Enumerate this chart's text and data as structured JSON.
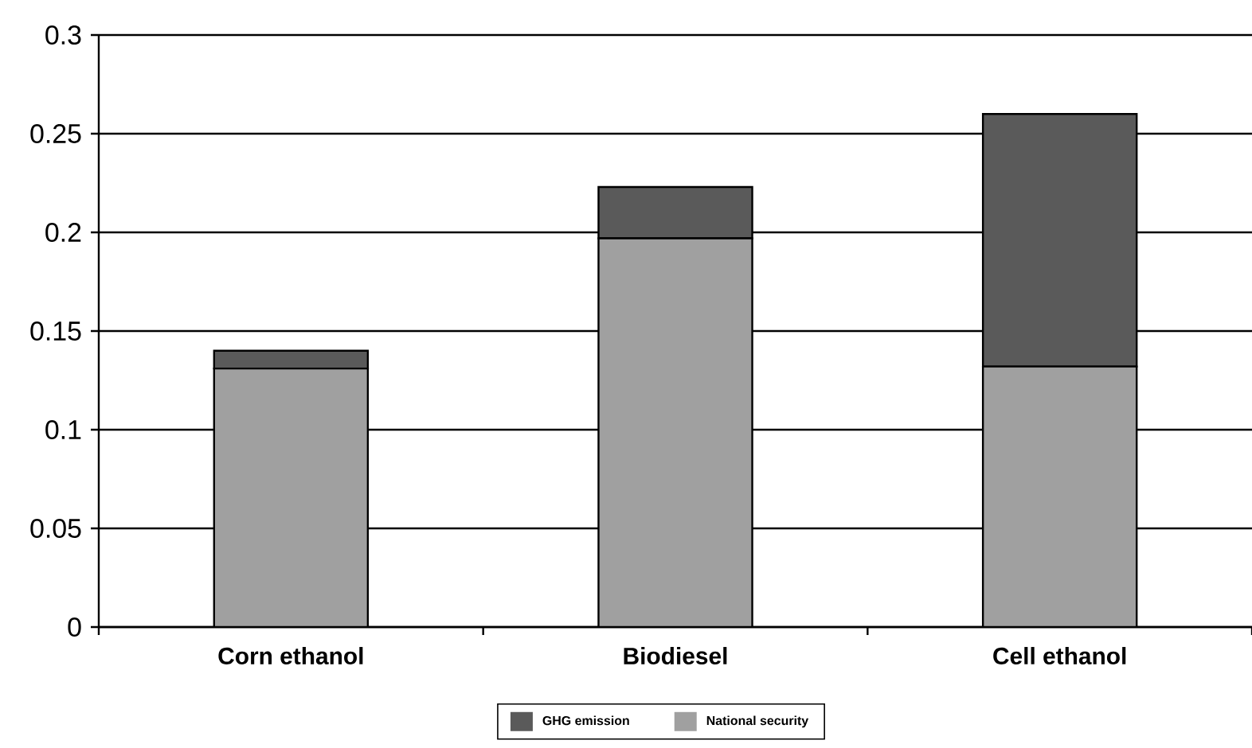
{
  "chart_data": {
    "type": "bar",
    "stacked": true,
    "categories": [
      "Corn ethanol",
      "Biodiesel",
      "Cell ethanol"
    ],
    "series": [
      {
        "name": "National security",
        "color": "#a0a0a0",
        "values": [
          0.131,
          0.197,
          0.132
        ]
      },
      {
        "name": "GHG emission",
        "color": "#5a5a5a",
        "values": [
          0.009,
          0.026,
          0.128
        ]
      }
    ],
    "ylim": [
      0,
      0.3
    ],
    "yticks": [
      0,
      0.05,
      0.1,
      0.15,
      0.2,
      0.25,
      0.3
    ],
    "grid": "y",
    "legend": "bottom"
  }
}
